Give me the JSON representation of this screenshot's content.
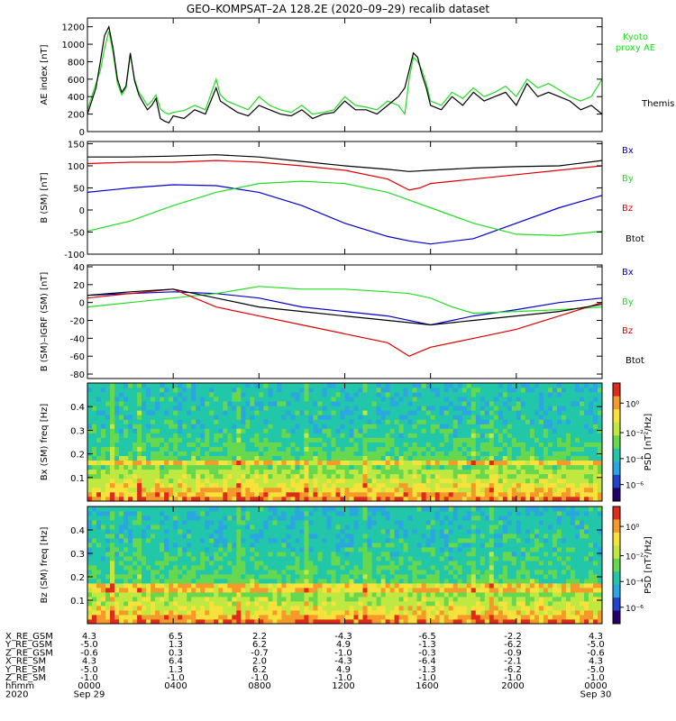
{
  "title": "GEO–KOMPSAT–2A 128.2E (2020–09–29) recalib dataset",
  "colors": {
    "black": "#000000",
    "green": "#22dd22",
    "blue": "#0000cc",
    "red": "#dd0000",
    "bg": "#ffffff"
  },
  "colorbar": {
    "label": "PSD [nT²/Hz]",
    "ticks": [
      "10⁰",
      "10⁻²",
      "10⁻⁴",
      "10⁻⁶"
    ]
  },
  "chart_data": [
    {
      "type": "line",
      "id": "ae",
      "ylabel": "AE index [nT]",
      "ylim": [
        0,
        1300
      ],
      "yticks": [
        0,
        200,
        400,
        600,
        800,
        1000,
        1200
      ],
      "xlim": [
        0,
        24
      ],
      "series": [
        {
          "name": "Kyoto proxy AE",
          "color": "green",
          "x": [
            0,
            0.2,
            0.4,
            0.6,
            0.8,
            1,
            1.2,
            1.4,
            1.6,
            1.8,
            2,
            2.2,
            2.4,
            2.6,
            2.8,
            3,
            3.2,
            3.4,
            3.6,
            3.8,
            4,
            4.5,
            5,
            5.5,
            6,
            6.2,
            6.5,
            7,
            7.5,
            8,
            8.5,
            9,
            9.5,
            10,
            10.5,
            11,
            11.5,
            12,
            12.5,
            13,
            13.5,
            14,
            14.5,
            14.8,
            15,
            15.2,
            15.4,
            15.6,
            15.8,
            16,
            16.5,
            17,
            17.5,
            18,
            18.5,
            19,
            19.5,
            20,
            20.5,
            21,
            21.5,
            22,
            22.5,
            23,
            23.5,
            24
          ],
          "values": [
            250,
            400,
            550,
            700,
            950,
            1150,
            900,
            550,
            420,
            500,
            880,
            600,
            450,
            380,
            300,
            350,
            420,
            260,
            220,
            200,
            220,
            240,
            300,
            250,
            600,
            420,
            350,
            300,
            250,
            400,
            300,
            250,
            220,
            300,
            200,
            220,
            250,
            400,
            300,
            280,
            250,
            350,
            300,
            200,
            600,
            850,
            800,
            700,
            550,
            350,
            300,
            450,
            380,
            500,
            400,
            450,
            520,
            400,
            600,
            500,
            550,
            480,
            400,
            350,
            400,
            600
          ]
        },
        {
          "name": "Themis AE",
          "color": "black",
          "x": [
            0,
            0.2,
            0.4,
            0.6,
            0.8,
            1,
            1.2,
            1.4,
            1.6,
            1.8,
            2,
            2.2,
            2.4,
            2.6,
            2.8,
            3,
            3.2,
            3.4,
            3.6,
            3.8,
            4,
            4.5,
            5,
            5.5,
            6,
            6.2,
            6.5,
            7,
            7.5,
            8,
            8.5,
            9,
            9.5,
            10,
            10.5,
            11,
            11.5,
            12,
            12.5,
            13,
            13.5,
            14,
            14.5,
            14.8,
            15,
            15.2,
            15.4,
            15.6,
            15.8,
            16,
            16.5,
            17,
            17.5,
            18,
            18.5,
            19,
            19.5,
            20,
            20.5,
            21,
            21.5,
            22,
            22.5,
            23,
            23.5,
            24
          ],
          "values": [
            200,
            350,
            500,
            800,
            1100,
            1200,
            950,
            600,
            450,
            520,
            900,
            580,
            420,
            330,
            250,
            300,
            380,
            150,
            120,
            100,
            180,
            150,
            250,
            200,
            500,
            350,
            300,
            220,
            180,
            300,
            250,
            200,
            180,
            250,
            150,
            200,
            220,
            350,
            250,
            250,
            200,
            300,
            400,
            500,
            700,
            900,
            850,
            650,
            500,
            300,
            250,
            400,
            300,
            450,
            350,
            400,
            450,
            300,
            550,
            400,
            450,
            400,
            350,
            250,
            300,
            200
          ]
        }
      ]
    },
    {
      "type": "line",
      "id": "bsm",
      "ylabel": "B (SM) [nT]",
      "ylim": [
        -100,
        155
      ],
      "yticks": [
        -100,
        -50,
        0,
        50,
        100,
        150
      ],
      "xlim": [
        0,
        24
      ],
      "series": [
        {
          "name": "Bx",
          "color": "blue",
          "x": [
            0,
            2,
            4,
            6,
            8,
            10,
            12,
            14,
            15,
            16,
            18,
            20,
            22,
            24
          ],
          "values": [
            40,
            50,
            57,
            55,
            40,
            10,
            -30,
            -60,
            -70,
            -77,
            -65,
            -30,
            5,
            33
          ]
        },
        {
          "name": "By",
          "color": "green",
          "x": [
            0,
            2,
            4,
            6,
            8,
            10,
            12,
            14,
            16,
            18,
            20,
            22,
            24
          ],
          "values": [
            -48,
            -25,
            10,
            40,
            60,
            65,
            60,
            40,
            5,
            -30,
            -55,
            -58,
            -48
          ]
        },
        {
          "name": "Bz",
          "color": "red",
          "x": [
            0,
            2,
            4,
            6,
            8,
            10,
            12,
            14,
            15,
            15.5,
            16,
            18,
            20,
            22,
            24
          ],
          "values": [
            105,
            108,
            108,
            112,
            108,
            100,
            90,
            70,
            45,
            50,
            60,
            70,
            80,
            90,
            100
          ]
        },
        {
          "name": "Btot",
          "color": "black",
          "x": [
            0,
            2,
            4,
            6,
            8,
            10,
            12,
            14,
            15,
            16,
            18,
            20,
            22,
            24
          ],
          "values": [
            120,
            120,
            122,
            125,
            120,
            110,
            100,
            92,
            87,
            90,
            95,
            98,
            100,
            112
          ]
        }
      ]
    },
    {
      "type": "line",
      "id": "dbsm",
      "ylabel": "B (SM)–IGRF (SM) [nT]",
      "ylim": [
        -85,
        42
      ],
      "yticks": [
        -80,
        -60,
        -40,
        -20,
        0,
        20,
        40
      ],
      "xlim": [
        0,
        24
      ],
      "series": [
        {
          "name": "Bx",
          "color": "blue",
          "x": [
            0,
            2,
            4,
            6,
            8,
            10,
            12,
            14,
            16,
            18,
            20,
            22,
            24
          ],
          "values": [
            8,
            10,
            12,
            10,
            5,
            -5,
            -10,
            -15,
            -25,
            -15,
            -8,
            0,
            5
          ]
        },
        {
          "name": "By",
          "color": "green",
          "x": [
            0,
            2,
            4,
            6,
            8,
            10,
            12,
            14,
            15,
            16,
            17,
            18,
            20,
            22,
            24
          ],
          "values": [
            -5,
            0,
            5,
            10,
            18,
            15,
            15,
            12,
            10,
            5,
            -5,
            -12,
            -10,
            -8,
            -5
          ]
        },
        {
          "name": "Bz",
          "color": "red",
          "x": [
            0,
            2,
            4,
            5,
            6,
            8,
            10,
            12,
            14,
            15,
            15.5,
            16,
            18,
            20,
            22,
            24
          ],
          "values": [
            5,
            10,
            15,
            5,
            -5,
            -15,
            -25,
            -35,
            -45,
            -60,
            -55,
            -50,
            -40,
            -30,
            -15,
            0
          ]
        },
        {
          "name": "Btot",
          "color": "black",
          "x": [
            0,
            2,
            4,
            6,
            8,
            10,
            12,
            14,
            16,
            18,
            20,
            22,
            24
          ],
          "values": [
            8,
            12,
            15,
            5,
            -5,
            -10,
            -15,
            -20,
            -25,
            -20,
            -15,
            -10,
            -2
          ]
        }
      ]
    },
    {
      "type": "heatmap",
      "id": "spec-bx",
      "ylabel": "Bx (SM) freq [Hz]",
      "ylim": [
        0,
        0.5
      ],
      "yticks": [
        0.1,
        0.2,
        0.3,
        0.4
      ],
      "xlim": [
        0,
        24
      ],
      "colorbar_label": "PSD [nT²/Hz]"
    },
    {
      "type": "heatmap",
      "id": "spec-bz",
      "ylabel": "Bz (SM) freq [Hz]",
      "ylim": [
        0,
        0.5
      ],
      "yticks": [
        0.1,
        0.2,
        0.3,
        0.4
      ],
      "xlim": [
        0,
        24
      ],
      "colorbar_label": "PSD [nT²/Hz]"
    }
  ],
  "ephemeris": {
    "row_labels": [
      "X_RE_GSM",
      "Y_RE_GSM",
      "Z_RE_GSM",
      "X_RE_SM",
      "Y_RE_SM",
      "Z_RE_SM",
      "hhmm",
      "2020"
    ],
    "columns": [
      [
        "4.3",
        "-5.0",
        "-0.6",
        "4.3",
        "-5.0",
        "-1.0",
        "0000",
        "Sep 29"
      ],
      [
        "6.5",
        "1.3",
        "0.3",
        "6.4",
        "1.3",
        "-1.0",
        "0400",
        ""
      ],
      [
        "2.2",
        "6.2",
        "-0.7",
        "2.0",
        "6.2",
        "-1.0",
        "0800",
        ""
      ],
      [
        "-4.3",
        "4.9",
        "-1.0",
        "-4.3",
        "4.9",
        "-1.0",
        "1200",
        ""
      ],
      [
        "-6.5",
        "-1.3",
        "-0.3",
        "-6.4",
        "-1.3",
        "-1.0",
        "1600",
        ""
      ],
      [
        "-2.2",
        "-6.2",
        "-0.9",
        "-2.1",
        "-6.2",
        "-1.0",
        "2000",
        ""
      ],
      [
        "4.3",
        "-5.0",
        "-0.6",
        "4.3",
        "-5.0",
        "-1.0",
        "0000",
        "Sep 30"
      ]
    ]
  }
}
